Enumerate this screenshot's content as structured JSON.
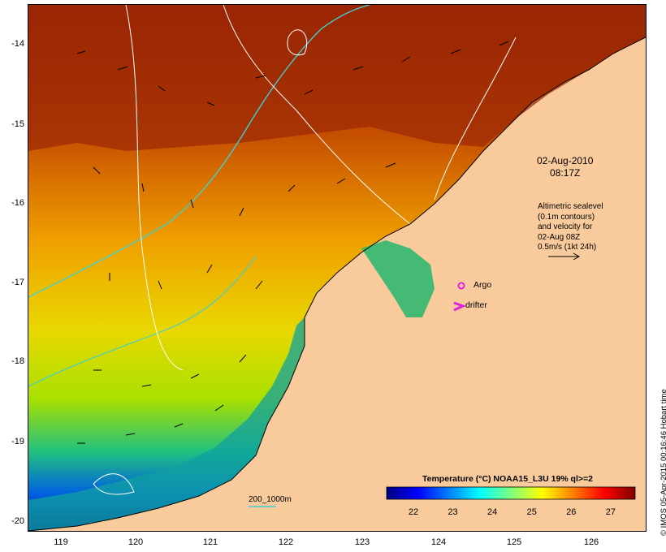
{
  "map": {
    "date": "02-Aug-2010",
    "time": "08:17Z",
    "altimetry_lines": [
      "Altimetric sealevel",
      "(0.1m contours)",
      "and velocity for",
      "02-Aug 08Z",
      "0.5m/s (1kt 24h)"
    ],
    "argo_label": "Argo",
    "drifter_label": "drifter",
    "contour_legend": "200_1000m",
    "credit": "© IMOS 05-Apr-2015 00:16:46 Hobart time",
    "colors": {
      "land": "#f9cb9c",
      "contour_200_1000m": "#40d0d0",
      "sealevel_contour": "#ffffff",
      "argo": "#e020e0",
      "drifter": "#e020e0"
    },
    "lat_ticks": [
      "-14",
      "-15",
      "-16",
      "-17",
      "-18",
      "-19",
      "-20"
    ],
    "lon_ticks": [
      "119",
      "120",
      "121",
      "122",
      "123",
      "124",
      "125",
      "126"
    ]
  },
  "colorbar": {
    "title": "Temperature (°C) NOAA15_L3U 19% ql>=2",
    "ticks": [
      "22",
      "23",
      "24",
      "25",
      "26",
      "27"
    ],
    "range": [
      21.3,
      27.6
    ],
    "stops": [
      "#00007f",
      "#0000ff",
      "#007fff",
      "#00ffff",
      "#7fff7f",
      "#ffff00",
      "#ff7f00",
      "#ff0000",
      "#7f0000"
    ]
  }
}
